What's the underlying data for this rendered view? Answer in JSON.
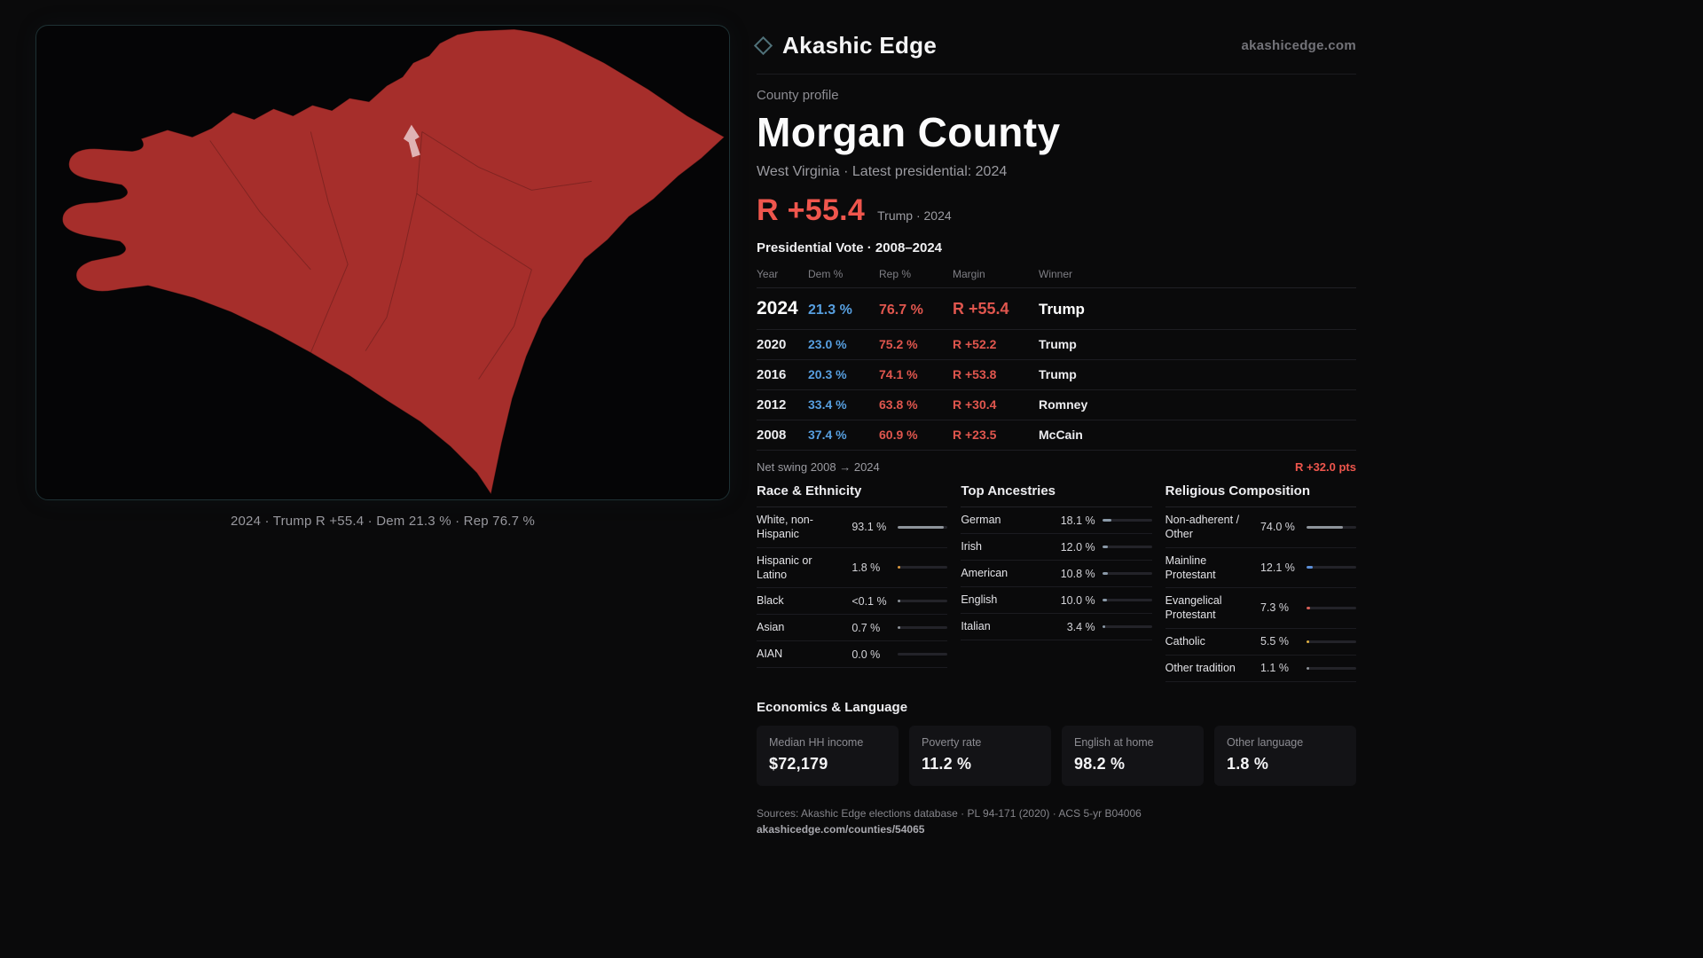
{
  "brand": {
    "name": "Akashic Edge",
    "domain": "akashicedge.com"
  },
  "map": {
    "caption": "2024 · Trump R +55.4 · Dem 21.3 % · Rep 76.7 %",
    "fill_color": "#a62e2b"
  },
  "profile": {
    "kicker": "County profile",
    "title": "Morgan County",
    "subtitle": "West Virginia · Latest presidential: 2024",
    "headline_margin": "R +55.4",
    "headline_note": "Trump · 2024"
  },
  "vote_table": {
    "title": "Presidential Vote · 2008–2024",
    "headers": [
      "Year",
      "Dem %",
      "Rep %",
      "Margin",
      "Winner"
    ],
    "rows": [
      {
        "year": "2024",
        "dem": "21.3 %",
        "rep": "76.7 %",
        "margin": "R +55.4",
        "winner": "Trump",
        "highlight": true
      },
      {
        "year": "2020",
        "dem": "23.0 %",
        "rep": "75.2 %",
        "margin": "R +52.2",
        "winner": "Trump"
      },
      {
        "year": "2016",
        "dem": "20.3 %",
        "rep": "74.1 %",
        "margin": "R +53.8",
        "winner": "Trump"
      },
      {
        "year": "2012",
        "dem": "33.4 %",
        "rep": "63.8 %",
        "margin": "R +30.4",
        "winner": "Romney"
      },
      {
        "year": "2008",
        "dem": "37.4 %",
        "rep": "60.9 %",
        "margin": "R +23.5",
        "winner": "McCain"
      }
    ],
    "net_swing_label": "Net swing 2008 → 2024",
    "net_swing_value": "R +32.0 pts"
  },
  "race": {
    "title": "Race & Ethnicity",
    "rows": [
      {
        "label": "White, non-Hispanic",
        "value": "93.1 %",
        "pct": 93.1,
        "color": "#8e949b"
      },
      {
        "label": "Hispanic or Latino",
        "value": "1.8 %",
        "pct": 1.8,
        "color": "#e09b3d"
      },
      {
        "label": "Black",
        "value": "<0.1 %",
        "pct": 0.1,
        "color": "#8e949b"
      },
      {
        "label": "Asian",
        "value": "0.7 %",
        "pct": 0.7,
        "color": "#8e949b"
      },
      {
        "label": "AIAN",
        "value": "0.0 %",
        "pct": 0,
        "color": "#8e949b"
      }
    ]
  },
  "ancestries": {
    "title": "Top Ancestries",
    "rows": [
      {
        "label": "German",
        "value": "18.1 %",
        "pct": 18.1,
        "color": "#8a99a8"
      },
      {
        "label": "Irish",
        "value": "12.0 %",
        "pct": 12.0,
        "color": "#8a99a8"
      },
      {
        "label": "American",
        "value": "10.8 %",
        "pct": 10.8,
        "color": "#8a99a8"
      },
      {
        "label": "English",
        "value": "10.0 %",
        "pct": 10.0,
        "color": "#8a99a8"
      },
      {
        "label": "Italian",
        "value": "3.4 %",
        "pct": 3.4,
        "color": "#8a99a8"
      }
    ]
  },
  "religion": {
    "title": "Religious Composition",
    "rows": [
      {
        "label": "Non-adherent / Other",
        "value": "74.0 %",
        "pct": 74.0,
        "color": "#8e949b"
      },
      {
        "label": "Mainline Protestant",
        "value": "12.1 %",
        "pct": 12.1,
        "color": "#5b8fd9"
      },
      {
        "label": "Evangelical Protestant",
        "value": "7.3 %",
        "pct": 7.3,
        "color": "#d95f57"
      },
      {
        "label": "Catholic",
        "value": "5.5 %",
        "pct": 5.5,
        "color": "#e3b341"
      },
      {
        "label": "Other tradition",
        "value": "1.1 %",
        "pct": 1.1,
        "color": "#8e949b"
      }
    ]
  },
  "economics": {
    "title": "Economics & Language",
    "stats": [
      {
        "label": "Median HH income",
        "value": "$72,179"
      },
      {
        "label": "Poverty rate",
        "value": "11.2 %"
      },
      {
        "label": "English at home",
        "value": "98.2 %"
      },
      {
        "label": "Other language",
        "value": "1.8 %"
      }
    ]
  },
  "footer": {
    "sources": "Sources: Akashic Edge elections database · PL 94-171 (2020) · ACS 5-yr B04006",
    "permalink": "akashicedge.com/counties/54065"
  }
}
